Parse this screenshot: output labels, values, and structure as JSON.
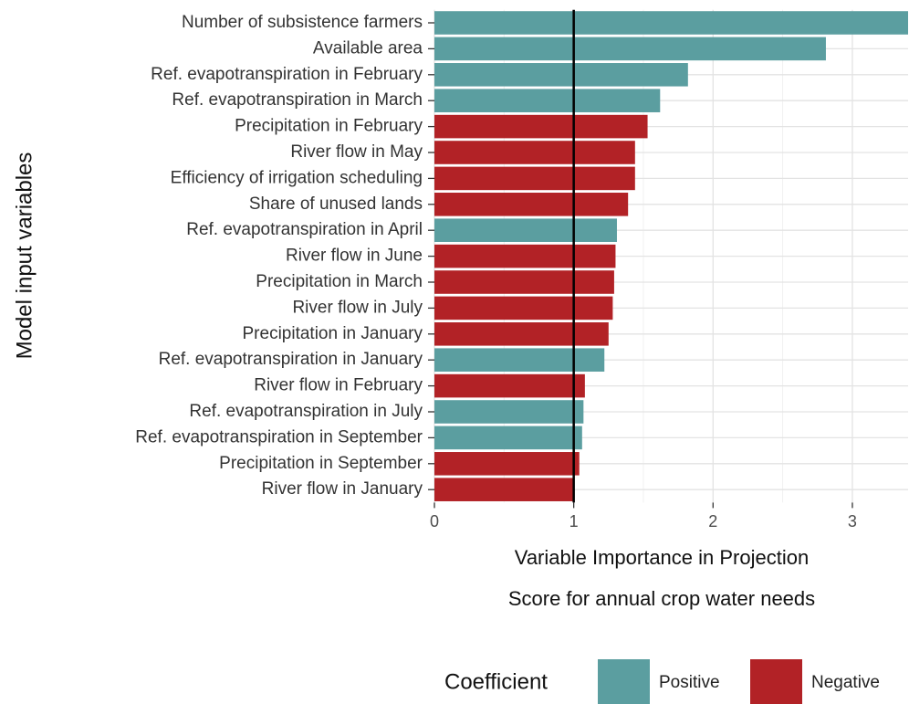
{
  "chart_data": {
    "type": "hbar",
    "ylabel": "Model input variables",
    "xlabel": [
      "Variable Importance in Projection",
      "Score for annual crop water needs"
    ],
    "categories": [
      "Number of subsistence farmers",
      "Available area",
      "Ref. evapotranspiration in February",
      "Ref. evapotranspiration in March",
      "Precipitation in February",
      "River flow in May",
      "Efficiency of irrigation scheduling",
      "Share of unused lands",
      "Ref. evapotranspiration in April",
      "River flow in June",
      "Precipitation in March",
      "River flow in July",
      "Precipitation in January",
      "Ref. evapotranspiration in January",
      "River flow in February",
      "Ref. evapotranspiration in July",
      "Ref. evapotranspiration in September",
      "Precipitation in September",
      "River flow in January"
    ],
    "series": [
      {
        "name": "Positive",
        "color": "#5b9ea0",
        "values": [
          3.4,
          2.81,
          1.82,
          1.62,
          null,
          null,
          null,
          null,
          1.31,
          null,
          null,
          null,
          null,
          1.22,
          null,
          1.07,
          1.06,
          null,
          null
        ]
      },
      {
        "name": "Negative",
        "color": "#b22226",
        "values": [
          null,
          null,
          null,
          null,
          1.53,
          1.44,
          1.44,
          1.39,
          null,
          1.3,
          1.29,
          1.28,
          1.25,
          null,
          1.08,
          null,
          null,
          1.04,
          1.0
        ]
      }
    ],
    "legend_title": "Coefficient",
    "reference_line": 1,
    "xlim": [
      0,
      3.4
    ],
    "xticks": [
      0,
      1,
      2,
      3
    ],
    "grid": true
  }
}
